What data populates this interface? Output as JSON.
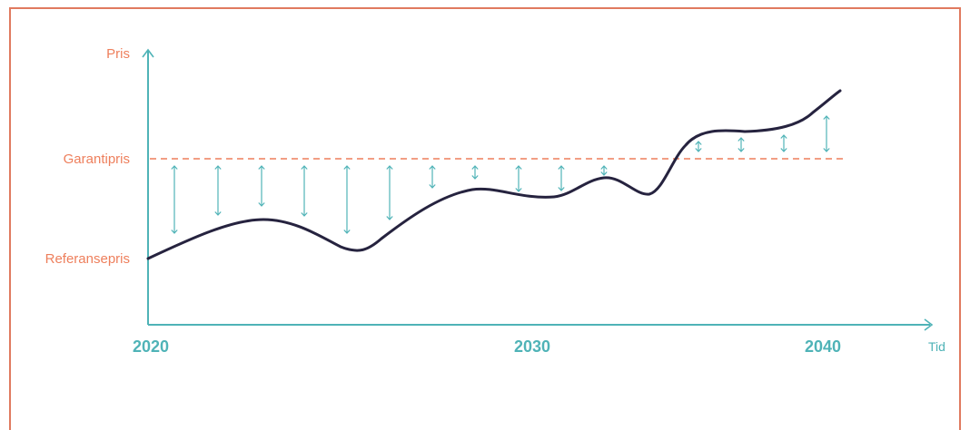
{
  "labels": {
    "y_axis": "Pris",
    "x_axis": "Tid",
    "guarantee_line": "Garantipris",
    "reference_curve": "Referansepris",
    "year_2020": "2020",
    "year_2030": "2030",
    "year_2040": "2040"
  },
  "colors": {
    "accent_orange": "#ee7f5c",
    "axis_teal": "#4fb3b7",
    "curve_navy": "#26233f",
    "frame_border": "#e07a5f"
  }
}
